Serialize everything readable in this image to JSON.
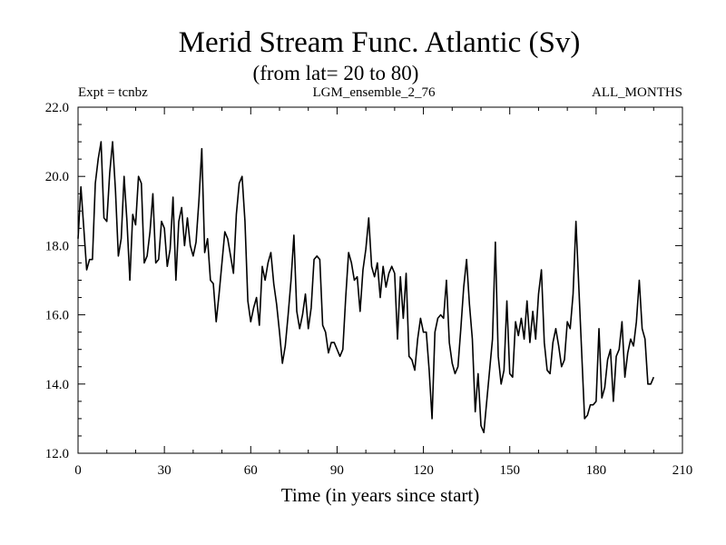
{
  "chart_data": {
    "type": "line",
    "title": "Merid Stream Func. Atlantic (Sv)",
    "subtitle": "(from lat= 20 to 80)",
    "header_left": "Expt = tcnbz",
    "header_center": "LGM_ensemble_2_76",
    "header_right": "ALL_MONTHS",
    "xlabel": "Time (in years since start)",
    "ylabel": "",
    "xlim": [
      0,
      210
    ],
    "ylim": [
      12,
      22
    ],
    "xticks": [
      0,
      30,
      60,
      90,
      120,
      150,
      180,
      210
    ],
    "xtick_labels": [
      "0",
      "30",
      "60",
      "90",
      "120",
      "150",
      "180",
      "210"
    ],
    "yticks": [
      12,
      14,
      16,
      18,
      20,
      22
    ],
    "ytick_labels": [
      "12.0",
      "14.0",
      "16.0",
      "18.0",
      "20.0",
      "22.0"
    ],
    "line_color": "#000000",
    "series": [
      {
        "name": "Merid Stream Func. Atlantic",
        "x": [
          0,
          1,
          2,
          3,
          4,
          5,
          6,
          7,
          8,
          9,
          10,
          11,
          12,
          13,
          14,
          15,
          16,
          17,
          18,
          19,
          20,
          21,
          22,
          23,
          24,
          25,
          26,
          27,
          28,
          29,
          30,
          31,
          32,
          33,
          34,
          35,
          36,
          37,
          38,
          39,
          40,
          41,
          42,
          43,
          44,
          45,
          46,
          47,
          48,
          49,
          50,
          51,
          52,
          53,
          54,
          55,
          56,
          57,
          58,
          59,
          60,
          61,
          62,
          63,
          64,
          65,
          66,
          67,
          68,
          69,
          70,
          71,
          72,
          73,
          74,
          75,
          76,
          77,
          78,
          79,
          80,
          81,
          82,
          83,
          84,
          85,
          86,
          87,
          88,
          89,
          90,
          91,
          92,
          93,
          94,
          95,
          96,
          97,
          98,
          99,
          100,
          101,
          102,
          103,
          104,
          105,
          106,
          107,
          108,
          109,
          110,
          111,
          112,
          113,
          114,
          115,
          116,
          117,
          118,
          119,
          120,
          121,
          122,
          123,
          124,
          125,
          126,
          127,
          128,
          129,
          130,
          131,
          132,
          133,
          134,
          135,
          136,
          137,
          138,
          139,
          140,
          141,
          142,
          143,
          144,
          145,
          146,
          147,
          148,
          149,
          150,
          151,
          152,
          153,
          154,
          155,
          156,
          157,
          158,
          159,
          160,
          161,
          162,
          163,
          164,
          165,
          166,
          167,
          168,
          169,
          170,
          171,
          172,
          173,
          174,
          175,
          176,
          177,
          178,
          179,
          180,
          181,
          182,
          183,
          184,
          185,
          186,
          187,
          188,
          189,
          190,
          191,
          192,
          193,
          194,
          195,
          196,
          197,
          198,
          199,
          200
        ],
        "values": [
          18.2,
          19.7,
          18.5,
          17.3,
          17.6,
          17.6,
          19.8,
          20.5,
          21.0,
          18.8,
          18.7,
          20.1,
          21.0,
          19.6,
          17.7,
          18.2,
          20.0,
          18.7,
          17.0,
          18.9,
          18.6,
          20.0,
          19.8,
          17.5,
          17.7,
          18.4,
          19.5,
          17.5,
          17.6,
          18.7,
          18.5,
          17.4,
          17.9,
          19.4,
          17.0,
          18.7,
          19.1,
          18.0,
          18.8,
          18.0,
          17.7,
          18.1,
          19.3,
          20.8,
          17.8,
          18.2,
          17.0,
          16.9,
          15.8,
          16.6,
          17.5,
          18.4,
          18.2,
          17.7,
          17.2,
          18.9,
          19.8,
          20.0,
          18.7,
          16.4,
          15.8,
          16.2,
          16.5,
          15.7,
          17.4,
          17.0,
          17.5,
          17.8,
          16.9,
          16.3,
          15.5,
          14.6,
          15.1,
          16.0,
          17.0,
          18.3,
          16.1,
          15.6,
          16.0,
          16.6,
          15.6,
          16.2,
          17.6,
          17.7,
          17.6,
          15.7,
          15.5,
          14.9,
          15.2,
          15.2,
          15.0,
          14.8,
          15.0,
          16.5,
          17.8,
          17.5,
          17.0,
          17.1,
          16.1,
          17.3,
          17.9,
          18.8,
          17.4,
          17.1,
          17.5,
          16.5,
          17.4,
          16.8,
          17.2,
          17.4,
          17.2,
          15.3,
          17.1,
          15.9,
          17.2,
          14.8,
          14.7,
          14.4,
          15.3,
          15.9,
          15.5,
          15.5,
          14.4,
          13.0,
          15.5,
          15.9,
          16.0,
          15.9,
          17.0,
          15.2,
          14.6,
          14.3,
          14.5,
          15.6,
          16.8,
          17.6,
          16.3,
          15.3,
          13.2,
          14.3,
          12.8,
          12.6,
          13.5,
          14.4,
          15.3,
          18.1,
          14.8,
          14.0,
          14.4,
          16.4,
          14.3,
          14.2,
          15.8,
          15.4,
          15.9,
          15.3,
          16.4,
          15.2,
          16.1,
          15.3,
          16.6,
          17.3,
          15.2,
          14.4,
          14.3,
          15.2,
          15.6,
          15.1,
          14.5,
          14.7,
          15.8,
          15.6,
          16.6,
          18.7,
          16.8,
          14.9,
          13.0,
          13.1,
          13.4,
          13.4,
          13.5,
          15.6,
          13.6,
          13.9,
          14.7,
          15.0,
          13.5,
          14.8,
          15.0,
          15.8,
          14.2,
          14.9,
          15.3,
          15.1,
          15.8,
          17.0,
          15.6,
          15.3,
          14.0,
          14.0,
          14.2
        ]
      }
    ]
  }
}
